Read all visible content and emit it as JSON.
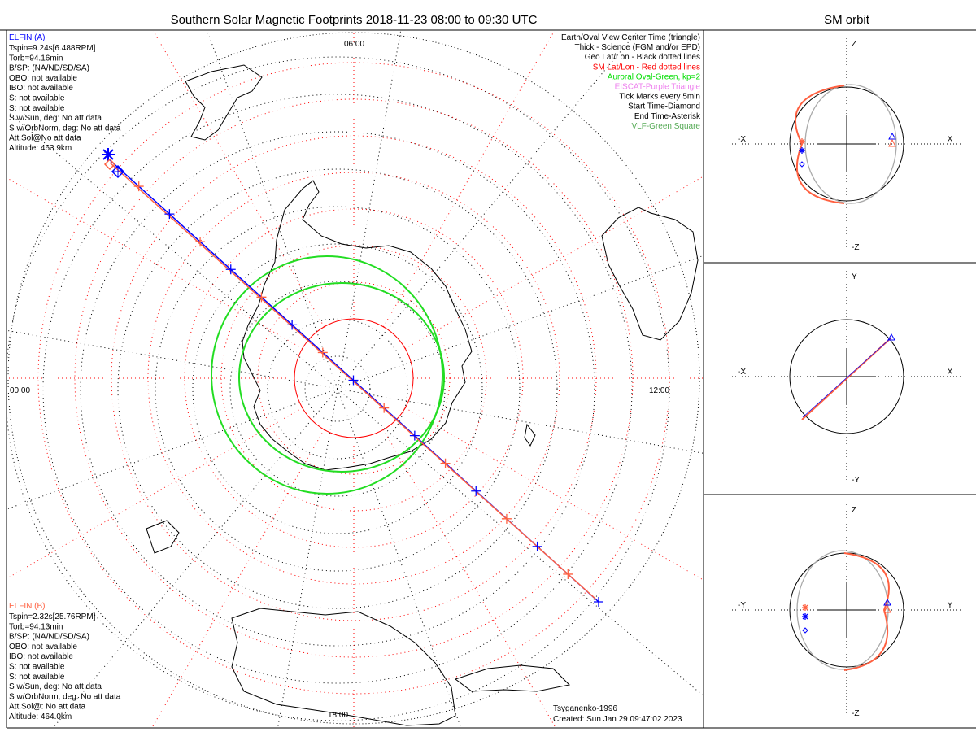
{
  "title": "Southern Solar Magnetic Footprints 2018-11-23 08:00 to 09:30 UTC",
  "orbit_title": "SM orbit",
  "clock_labels": {
    "top": "06:00",
    "left": "00:00",
    "right": "12:00",
    "bottom": "18:00"
  },
  "elfin_a": {
    "name": "ELFIN (A)",
    "lines": [
      "Tspin=9.24s[6.488RPM]",
      "Torb=94.16min",
      "B/SP: (NA/ND/SD/SA)",
      "OBO: not available",
      "IBO: not available",
      "S: not available",
      "S: not available",
      "S w/Sun, deg: No att data",
      "S w/OrbNorm, deg: No att data",
      "Att.Sol@No att data",
      "Altitude: 463.9km"
    ]
  },
  "elfin_b": {
    "name": "ELFIN (B)",
    "lines": [
      "Tspin=2.32s[25.76RPM]",
      "Torb=94.13min",
      "B/SP: (NA/ND/SD/SA)",
      "OBO: not available",
      "IBO: not available",
      "S: not available",
      "S: not available",
      "S w/Sun, deg: No att data",
      "S w/OrbNorm, deg: No att data",
      "Att.Sol@: No att data",
      "Altitude: 464.0km"
    ]
  },
  "legend": [
    {
      "text": "Earth/Oval View Center Time (triangle)",
      "color": "#000000"
    },
    {
      "text": "Thick - Science (FGM and/or EPD)",
      "color": "#000000"
    },
    {
      "text": "Geo Lat/Lon - Black dotted lines",
      "color": "#000000"
    },
    {
      "text": "SM Lat/Lon - Red dotted lines",
      "color": "#ff0000"
    },
    {
      "text": "Auroral Oval-Green, kp=2",
      "color": "#00dd00"
    },
    {
      "text": "EISCAT-Purple Triangle",
      "color": "#ee82ee"
    },
    {
      "text": "Tick Marks every 5min",
      "color": "#000000"
    },
    {
      "text": "Start Time-Diamond",
      "color": "#000000"
    },
    {
      "text": "End Time-Asterisk",
      "color": "#000000"
    },
    {
      "text": "VLF-Green Square",
      "color": "#55aa55"
    }
  ],
  "footer": {
    "model": "Tsyganenko-1996",
    "created": "Created: Sun Jan 29 09:47:02 2023"
  },
  "orbit_panels": [
    {
      "top": "Z",
      "bottom": "-Z",
      "left": "-X",
      "right": "X"
    },
    {
      "top": "Y",
      "bottom": "-Y",
      "left": "-X",
      "right": "X"
    },
    {
      "top": "Z",
      "bottom": "-Z",
      "left": "-Y",
      "right": "Y"
    }
  ],
  "colors": {
    "elfin_a": "#0000ff",
    "elfin_b": "#ff6040",
    "oval": "#22dd22",
    "sm_grid": "#ff0000",
    "geo_grid": "#000000",
    "orbit_gray": "#aaaaaa"
  }
}
